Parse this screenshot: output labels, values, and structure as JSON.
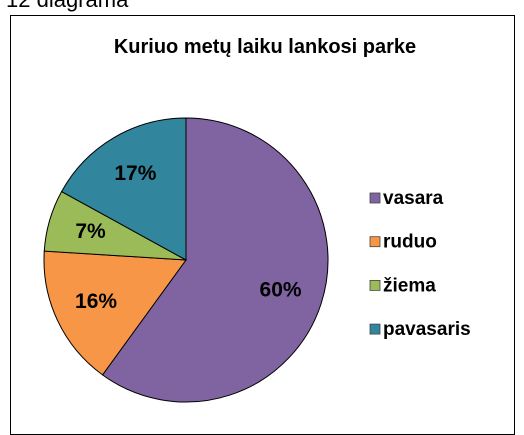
{
  "caption": "12 diagrama",
  "chart_data": {
    "type": "pie",
    "title": "Kuriuo metų laiku lankosi parke",
    "categories": [
      "vasara",
      "ruduo",
      "žiema",
      "pavasaris"
    ],
    "values": [
      60,
      16,
      7,
      17
    ],
    "value_labels": [
      "60%",
      "16%",
      "7%",
      "17%"
    ],
    "colors": [
      "#8064a2",
      "#f79646",
      "#9bbb59",
      "#31859c"
    ],
    "legend": "right"
  }
}
